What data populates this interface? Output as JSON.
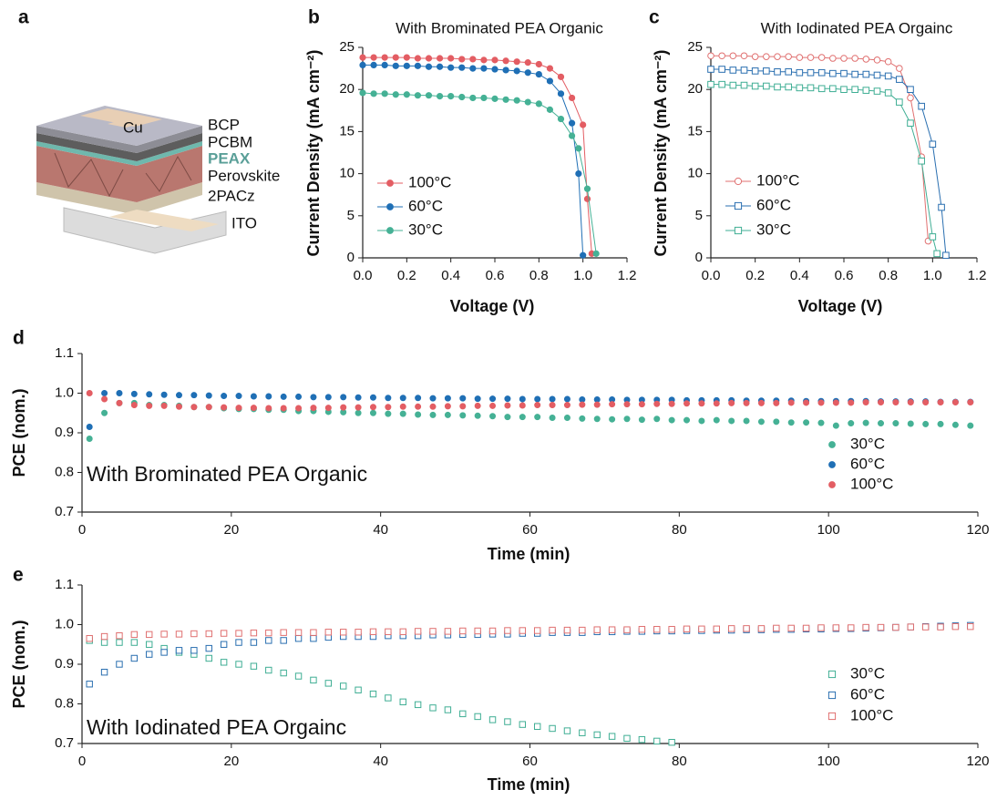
{
  "diagram": {
    "panel": "a",
    "electrode": "Cu",
    "layers": [
      "BCP",
      "PCBM",
      "PEAX",
      "Perovskite",
      "2PACz",
      "ITO"
    ]
  },
  "chart_data": [
    {
      "type": "line",
      "panel": "b",
      "title": "With Brominated PEA Organic",
      "xlabel": "Voltage (V)",
      "ylabel": "Current Density (mA cm⁻²)",
      "xlim": [
        0,
        1.2
      ],
      "xticks": [
        {
          "value": 0,
          "label": "0.0"
        },
        0.2,
        0.4,
        0.6,
        0.8,
        {
          "value": 1,
          "label": "1.0"
        },
        1.2
      ],
      "ylim": [
        0,
        25
      ],
      "yticks": [
        0,
        5,
        10,
        15,
        20,
        25
      ],
      "legend": "lower left",
      "series": [
        {
          "name": "100°C",
          "color": "#e35d63",
          "marker": "circle",
          "x": [
            0,
            0.05,
            0.1,
            0.15,
            0.2,
            0.25,
            0.3,
            0.35,
            0.4,
            0.45,
            0.5,
            0.55,
            0.6,
            0.65,
            0.7,
            0.75,
            0.8,
            0.85,
            0.9,
            0.95,
            1.0,
            1.02,
            1.04
          ],
          "values": [
            23.8,
            23.8,
            23.8,
            23.8,
            23.8,
            23.7,
            23.7,
            23.7,
            23.7,
            23.6,
            23.6,
            23.5,
            23.5,
            23.4,
            23.3,
            23.2,
            23.0,
            22.5,
            21.5,
            19.0,
            15.8,
            7.0,
            0.5
          ]
        },
        {
          "name": "60°C",
          "color": "#1f6fb5",
          "marker": "circle",
          "x": [
            0,
            0.05,
            0.1,
            0.15,
            0.2,
            0.25,
            0.3,
            0.35,
            0.4,
            0.45,
            0.5,
            0.55,
            0.6,
            0.65,
            0.7,
            0.75,
            0.8,
            0.85,
            0.9,
            0.95,
            0.98,
            1.0
          ],
          "values": [
            22.9,
            22.9,
            22.9,
            22.8,
            22.8,
            22.8,
            22.7,
            22.7,
            22.6,
            22.6,
            22.5,
            22.5,
            22.4,
            22.3,
            22.2,
            22.0,
            21.8,
            21.0,
            19.5,
            16.0,
            10.0,
            0.3
          ]
        },
        {
          "name": "30°C",
          "color": "#45b195",
          "marker": "circle",
          "x": [
            0,
            0.05,
            0.1,
            0.15,
            0.2,
            0.25,
            0.3,
            0.35,
            0.4,
            0.45,
            0.5,
            0.55,
            0.6,
            0.65,
            0.7,
            0.75,
            0.8,
            0.85,
            0.9,
            0.95,
            0.98,
            1.02,
            1.06
          ],
          "values": [
            19.6,
            19.5,
            19.5,
            19.4,
            19.4,
            19.3,
            19.3,
            19.2,
            19.2,
            19.1,
            19.0,
            19.0,
            18.9,
            18.8,
            18.7,
            18.5,
            18.3,
            17.6,
            16.5,
            14.5,
            13.0,
            8.2,
            0.5
          ]
        }
      ]
    },
    {
      "type": "line",
      "panel": "c",
      "title": "With Iodinated PEA Orgainc",
      "xlabel": "Voltage (V)",
      "ylabel": "Current Density (mA cm⁻²)",
      "xlim": [
        0,
        1.2
      ],
      "xticks": [
        {
          "value": 0,
          "label": "0.0"
        },
        0.2,
        0.4,
        0.6,
        0.8,
        {
          "value": 1,
          "label": "1.0"
        },
        1.2
      ],
      "ylim": [
        0,
        25
      ],
      "yticks": [
        0,
        5,
        10,
        15,
        20,
        25
      ],
      "legend": "lower left",
      "series": [
        {
          "name": "100°C",
          "color": "#e07070",
          "marker": "circle-open",
          "x": [
            0,
            0.05,
            0.1,
            0.15,
            0.2,
            0.25,
            0.3,
            0.35,
            0.4,
            0.45,
            0.5,
            0.55,
            0.6,
            0.65,
            0.7,
            0.75,
            0.8,
            0.85,
            0.9,
            0.95,
            0.98
          ],
          "values": [
            24.0,
            24.0,
            24.0,
            24.0,
            23.9,
            23.9,
            23.9,
            23.9,
            23.8,
            23.8,
            23.8,
            23.7,
            23.7,
            23.7,
            23.6,
            23.5,
            23.3,
            22.5,
            19.0,
            12.0,
            2.0
          ]
        },
        {
          "name": "60°C",
          "color": "#2a6fb0",
          "marker": "square-open",
          "x": [
            0,
            0.05,
            0.1,
            0.15,
            0.2,
            0.25,
            0.3,
            0.35,
            0.4,
            0.45,
            0.5,
            0.55,
            0.6,
            0.65,
            0.7,
            0.75,
            0.8,
            0.85,
            0.9,
            0.95,
            1.0,
            1.04,
            1.06
          ],
          "values": [
            22.4,
            22.4,
            22.3,
            22.3,
            22.2,
            22.2,
            22.1,
            22.1,
            22.0,
            22.0,
            22.0,
            21.9,
            21.9,
            21.8,
            21.8,
            21.7,
            21.6,
            21.2,
            20.0,
            18.0,
            13.5,
            6.0,
            0.3
          ]
        },
        {
          "name": "30°C",
          "color": "#3fae94",
          "marker": "square-open",
          "x": [
            0,
            0.05,
            0.1,
            0.15,
            0.2,
            0.25,
            0.3,
            0.35,
            0.4,
            0.45,
            0.5,
            0.55,
            0.6,
            0.65,
            0.7,
            0.75,
            0.8,
            0.85,
            0.9,
            0.95,
            1.0,
            1.02
          ],
          "values": [
            20.6,
            20.6,
            20.5,
            20.5,
            20.4,
            20.4,
            20.3,
            20.3,
            20.2,
            20.2,
            20.1,
            20.1,
            20.0,
            20.0,
            19.9,
            19.8,
            19.6,
            18.5,
            16.0,
            11.5,
            2.5,
            0.5
          ]
        }
      ]
    },
    {
      "type": "scatter",
      "panel": "d",
      "annotation": "With Brominated PEA Organic",
      "xlabel": "Time (min)",
      "ylabel": "PCE (nom.)",
      "xlim": [
        0,
        120
      ],
      "xticks": [
        0,
        20,
        40,
        60,
        80,
        100,
        120
      ],
      "ylim": [
        0.7,
        1.1
      ],
      "yticks": [
        0.7,
        0.8,
        0.9,
        {
          "value": 1,
          "label": "1.0"
        },
        1.1
      ],
      "legend": "lower right",
      "x": [
        1,
        3,
        5,
        7,
        9,
        11,
        13,
        15,
        17,
        19,
        21,
        23,
        25,
        27,
        29,
        31,
        33,
        35,
        37,
        39,
        41,
        43,
        45,
        47,
        49,
        51,
        53,
        55,
        57,
        59,
        61,
        63,
        65,
        67,
        69,
        71,
        73,
        75,
        77,
        79,
        81,
        83,
        85,
        87,
        89,
        91,
        93,
        95,
        97,
        99,
        101,
        103,
        105,
        107,
        109,
        111,
        113,
        115,
        117,
        119
      ],
      "series": [
        {
          "name": "30°C",
          "color": "#45b195",
          "marker": "circle",
          "values": [
            0.885,
            0.95,
            0.975,
            0.975,
            0.97,
            0.97,
            0.968,
            0.965,
            0.965,
            0.962,
            0.96,
            0.96,
            0.958,
            0.958,
            0.955,
            0.955,
            0.953,
            0.952,
            0.95,
            0.95,
            0.948,
            0.948,
            0.946,
            0.945,
            0.945,
            0.944,
            0.943,
            0.942,
            0.94,
            0.94,
            0.94,
            0.938,
            0.938,
            0.936,
            0.935,
            0.934,
            0.935,
            0.933,
            0.935,
            0.932,
            0.932,
            0.93,
            0.932,
            0.93,
            0.93,
            0.928,
            0.928,
            0.926,
            0.926,
            0.925,
            0.918,
            0.924,
            0.925,
            0.924,
            0.924,
            0.923,
            0.922,
            0.922,
            0.92,
            0.918
          ]
        },
        {
          "name": "60°C",
          "color": "#1f6fb5",
          "marker": "circle",
          "values": [
            0.915,
            1.0,
            1.0,
            0.998,
            0.997,
            0.996,
            0.995,
            0.995,
            0.994,
            0.993,
            0.993,
            0.992,
            0.992,
            0.991,
            0.991,
            0.99,
            0.99,
            0.99,
            0.989,
            0.989,
            0.988,
            0.988,
            0.988,
            0.987,
            0.987,
            0.987,
            0.986,
            0.986,
            0.986,
            0.985,
            0.985,
            0.985,
            0.985,
            0.984,
            0.984,
            0.984,
            0.983,
            0.983,
            0.983,
            0.983,
            0.982,
            0.982,
            0.982,
            0.982,
            0.981,
            0.981,
            0.981,
            0.981,
            0.98,
            0.98,
            0.98,
            0.98,
            0.98,
            0.979,
            0.979,
            0.979,
            0.979,
            0.978,
            0.978,
            0.978
          ]
        },
        {
          "name": "100°C",
          "color": "#e35d63",
          "marker": "circle",
          "values": [
            1.0,
            0.985,
            0.975,
            0.97,
            0.968,
            0.968,
            0.966,
            0.965,
            0.965,
            0.964,
            0.963,
            0.963,
            0.962,
            0.962,
            0.962,
            0.963,
            0.963,
            0.964,
            0.964,
            0.965,
            0.965,
            0.966,
            0.966,
            0.966,
            0.967,
            0.967,
            0.968,
            0.968,
            0.969,
            0.969,
            0.97,
            0.97,
            0.97,
            0.971,
            0.971,
            0.972,
            0.972,
            0.972,
            0.973,
            0.973,
            0.974,
            0.974,
            0.974,
            0.975,
            0.975,
            0.975,
            0.975,
            0.976,
            0.976,
            0.976,
            0.976,
            0.976,
            0.977,
            0.977,
            0.977,
            0.977,
            0.977,
            0.977,
            0.977,
            0.977
          ]
        }
      ]
    },
    {
      "type": "scatter",
      "panel": "e",
      "annotation": "With Iodinated PEA Orgainc",
      "xlabel": "Time (min)",
      "ylabel": "PCE (nom.)",
      "xlim": [
        0,
        120
      ],
      "xticks": [
        0,
        20,
        40,
        60,
        80,
        100,
        120
      ],
      "ylim": [
        0.7,
        1.1
      ],
      "yticks": [
        0.7,
        0.8,
        0.9,
        {
          "value": 1,
          "label": "1.0"
        },
        1.1
      ],
      "legend": "lower right",
      "x": [
        1,
        3,
        5,
        7,
        9,
        11,
        13,
        15,
        17,
        19,
        21,
        23,
        25,
        27,
        29,
        31,
        33,
        35,
        37,
        39,
        41,
        43,
        45,
        47,
        49,
        51,
        53,
        55,
        57,
        59,
        61,
        63,
        65,
        67,
        69,
        71,
        73,
        75,
        77,
        79,
        81,
        83,
        85,
        87,
        89,
        91,
        93,
        95,
        97,
        99,
        101,
        103,
        105,
        107,
        109,
        111,
        113,
        115,
        117,
        119
      ],
      "series": [
        {
          "name": "30°C",
          "color": "#3fae94",
          "marker": "square-open",
          "x": [
            1,
            3,
            5,
            7,
            9,
            11,
            13,
            15,
            17,
            19,
            21,
            23,
            25,
            27,
            29,
            31,
            33,
            35,
            37,
            39,
            41,
            43,
            45,
            47,
            49,
            51,
            53,
            55,
            57,
            59,
            61,
            63,
            65,
            67,
            69,
            71,
            73,
            75,
            77,
            79
          ],
          "values": [
            0.96,
            0.955,
            0.955,
            0.955,
            0.95,
            0.94,
            0.93,
            0.925,
            0.915,
            0.905,
            0.9,
            0.895,
            0.885,
            0.878,
            0.87,
            0.86,
            0.852,
            0.845,
            0.835,
            0.825,
            0.815,
            0.805,
            0.798,
            0.79,
            0.785,
            0.775,
            0.768,
            0.76,
            0.755,
            0.748,
            0.743,
            0.738,
            0.732,
            0.727,
            0.722,
            0.718,
            0.713,
            0.71,
            0.706,
            0.703
          ]
        },
        {
          "name": "60°C",
          "color": "#2a6fb0",
          "marker": "square-open",
          "values": [
            0.85,
            0.88,
            0.9,
            0.915,
            0.925,
            0.93,
            0.935,
            0.935,
            0.94,
            0.95,
            0.955,
            0.955,
            0.96,
            0.96,
            0.965,
            0.965,
            0.968,
            0.97,
            0.97,
            0.97,
            0.972,
            0.972,
            0.972,
            0.974,
            0.974,
            0.975,
            0.975,
            0.976,
            0.976,
            0.978,
            0.978,
            0.98,
            0.98,
            0.98,
            0.982,
            0.982,
            0.983,
            0.983,
            0.984,
            0.984,
            0.985,
            0.985,
            0.986,
            0.986,
            0.987,
            0.987,
            0.988,
            0.988,
            0.989,
            0.989,
            0.99,
            0.99,
            0.991,
            0.992,
            0.993,
            0.994,
            0.995,
            0.996,
            0.997,
            0.998
          ]
        },
        {
          "name": "100°C",
          "color": "#e07070",
          "marker": "square-open",
          "values": [
            0.965,
            0.97,
            0.972,
            0.975,
            0.975,
            0.976,
            0.976,
            0.977,
            0.977,
            0.978,
            0.978,
            0.979,
            0.979,
            0.98,
            0.98,
            0.98,
            0.981,
            0.981,
            0.981,
            0.982,
            0.982,
            0.982,
            0.983,
            0.983,
            0.983,
            0.984,
            0.984,
            0.984,
            0.985,
            0.985,
            0.985,
            0.986,
            0.986,
            0.986,
            0.987,
            0.987,
            0.987,
            0.988,
            0.988,
            0.988,
            0.989,
            0.989,
            0.989,
            0.99,
            0.99,
            0.99,
            0.991,
            0.991,
            0.991,
            0.992,
            0.992,
            0.992,
            0.993,
            0.993,
            0.993,
            0.994,
            0.994,
            0.994,
            0.995,
            0.995
          ]
        }
      ]
    }
  ]
}
